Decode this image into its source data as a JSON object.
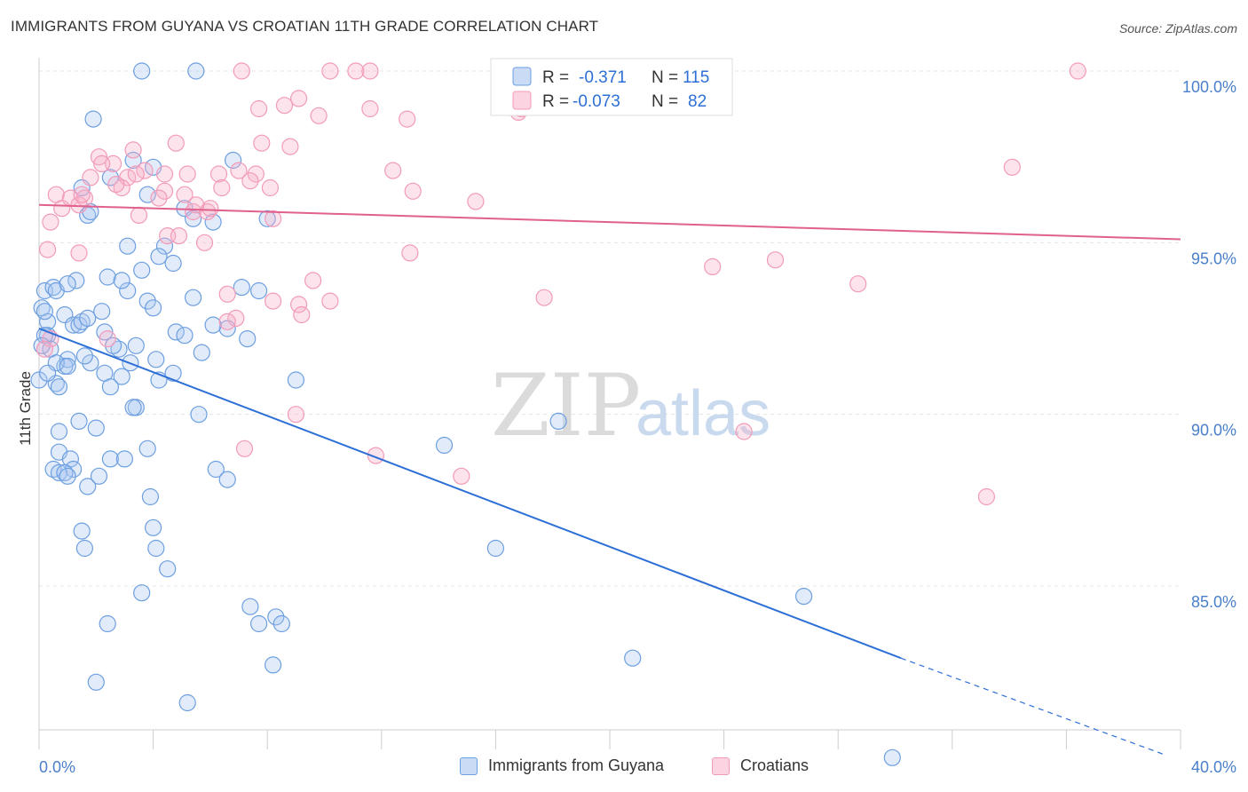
{
  "header": {
    "title": "IMMIGRANTS FROM GUYANA VS CROATIAN 11TH GRADE CORRELATION CHART",
    "source": "Source: ZipAtlas.com"
  },
  "watermark": {
    "zip": "ZIP",
    "atlas": "atlas"
  },
  "legend_top": {
    "rows": [
      {
        "r_label": "R =",
        "r_value": "-0.371",
        "n_label": "N =",
        "n_value": "115",
        "color": "#6d9fe0"
      },
      {
        "r_label": "R =",
        "r_value": "-0.073",
        "n_label": "N =",
        "n_value": "82",
        "color": "#f29bb8"
      }
    ]
  },
  "legend_bottom": {
    "items": [
      {
        "label": "Immigrants from Guyana",
        "color": "#6d9fe0"
      },
      {
        "label": "Croatians",
        "color": "#f29bb8"
      }
    ]
  },
  "chart_data": {
    "type": "scatter",
    "title": "IMMIGRANTS FROM GUYANA VS CROATIAN 11TH GRADE CORRELATION CHART",
    "xlabel": "",
    "ylabel": "11th Grade",
    "xlim": [
      0,
      40
    ],
    "ylim": [
      80,
      100.5
    ],
    "x_ticks": [
      0,
      4,
      8,
      12,
      16,
      20,
      24,
      28,
      32,
      36,
      40
    ],
    "x_tick_labels": {
      "0": "0.0%",
      "40": "40.0%"
    },
    "y_ticks": [
      100,
      95,
      90,
      85
    ],
    "y_tick_labels": [
      "100.0%",
      "95.0%",
      "90.0%",
      "85.0%"
    ],
    "grid": true,
    "legend_position": "top-center",
    "series": [
      {
        "name": "Immigrants from Guyana",
        "color": "#6d9fe0",
        "line_color": "#2d6fd6",
        "r": -0.371,
        "n": 115,
        "trend": {
          "x0": 0,
          "y0": 92.5,
          "x1": 30.2,
          "y1": 82.9,
          "dash_to_x": 39.4,
          "dash_to_y": 80.1
        },
        "points": [
          [
            3.6,
            100
          ],
          [
            5.5,
            100
          ],
          [
            1.9,
            98.6
          ],
          [
            3.3,
            97.4
          ],
          [
            6.8,
            97.4
          ],
          [
            2.5,
            96.9
          ],
          [
            1.5,
            96.6
          ],
          [
            4.0,
            97.2
          ],
          [
            3.8,
            96.4
          ],
          [
            1.7,
            95.8
          ],
          [
            1.8,
            95.9
          ],
          [
            5.1,
            96.0
          ],
          [
            5.4,
            95.7
          ],
          [
            6.1,
            95.6
          ],
          [
            8.0,
            95.7
          ],
          [
            3.1,
            94.9
          ],
          [
            4.4,
            94.9
          ],
          [
            2.4,
            94.0
          ],
          [
            1.3,
            93.9
          ],
          [
            3.6,
            94.2
          ],
          [
            4.2,
            94.6
          ],
          [
            4.7,
            94.4
          ],
          [
            0.2,
            93.6
          ],
          [
            0.5,
            93.7
          ],
          [
            0.6,
            93.6
          ],
          [
            3.1,
            93.6
          ],
          [
            3.8,
            93.3
          ],
          [
            5.4,
            93.4
          ],
          [
            7.7,
            93.6
          ],
          [
            4.0,
            93.1
          ],
          [
            0.1,
            93.1
          ],
          [
            0.3,
            92.7
          ],
          [
            0.3,
            92.3
          ],
          [
            0.9,
            92.9
          ],
          [
            1.2,
            92.6
          ],
          [
            1.4,
            92.6
          ],
          [
            1.5,
            92.7
          ],
          [
            1.7,
            92.8
          ],
          [
            2.2,
            93.0
          ],
          [
            2.3,
            92.4
          ],
          [
            0.2,
            92.3
          ],
          [
            4.8,
            92.4
          ],
          [
            5.1,
            92.3
          ],
          [
            6.6,
            92.5
          ],
          [
            7.3,
            92.2
          ],
          [
            1.0,
            91.6
          ],
          [
            0.4,
            91.9
          ],
          [
            1.8,
            91.5
          ],
          [
            2.8,
            91.9
          ],
          [
            3.4,
            92.0
          ],
          [
            0.9,
            91.4
          ],
          [
            0.6,
            91.5
          ],
          [
            1.0,
            91.4
          ],
          [
            2.3,
            91.2
          ],
          [
            3.2,
            91.5
          ],
          [
            4.7,
            91.2
          ],
          [
            2.9,
            91.1
          ],
          [
            4.2,
            91.0
          ],
          [
            0.6,
            90.9
          ],
          [
            0.7,
            90.8
          ],
          [
            2.5,
            90.8
          ],
          [
            9.0,
            91.0
          ],
          [
            3.4,
            90.2
          ],
          [
            3.3,
            90.2
          ],
          [
            5.6,
            90.0
          ],
          [
            1.4,
            89.8
          ],
          [
            0.7,
            89.5
          ],
          [
            2.0,
            89.6
          ],
          [
            3.8,
            89.0
          ],
          [
            0.7,
            88.9
          ],
          [
            1.1,
            88.7
          ],
          [
            2.5,
            88.7
          ],
          [
            3.0,
            88.7
          ],
          [
            0.5,
            88.4
          ],
          [
            1.2,
            88.4
          ],
          [
            0.7,
            88.3
          ],
          [
            0.9,
            88.3
          ],
          [
            1.0,
            88.2
          ],
          [
            2.1,
            88.2
          ],
          [
            6.2,
            88.4
          ],
          [
            6.6,
            88.1
          ],
          [
            1.7,
            87.9
          ],
          [
            3.9,
            87.6
          ],
          [
            14.2,
            89.1
          ],
          [
            18.2,
            89.8
          ],
          [
            4.0,
            86.7
          ],
          [
            1.5,
            86.6
          ],
          [
            1.6,
            86.1
          ],
          [
            4.1,
            86.1
          ],
          [
            16.0,
            86.1
          ],
          [
            4.5,
            85.5
          ],
          [
            3.6,
            84.8
          ],
          [
            7.4,
            84.4
          ],
          [
            8.3,
            84.1
          ],
          [
            2.4,
            83.9
          ],
          [
            7.7,
            83.9
          ],
          [
            8.5,
            83.9
          ],
          [
            26.8,
            84.7
          ],
          [
            8.2,
            82.7
          ],
          [
            20.8,
            82.9
          ],
          [
            2.0,
            82.2
          ],
          [
            5.2,
            81.6
          ],
          [
            29.9,
            80.0
          ],
          [
            0.0,
            91.0
          ],
          [
            0.1,
            92.0
          ],
          [
            0.2,
            93.0
          ],
          [
            0.3,
            91.2
          ],
          [
            1.6,
            91.7
          ],
          [
            2.6,
            92.0
          ],
          [
            4.1,
            91.6
          ],
          [
            5.7,
            91.8
          ],
          [
            6.1,
            92.6
          ],
          [
            7.1,
            93.7
          ],
          [
            1.0,
            93.8
          ],
          [
            2.9,
            93.9
          ]
        ]
      },
      {
        "name": "Croatians",
        "color": "#f29bb8",
        "line_color": "#e0608e",
        "r": -0.073,
        "n": 82,
        "trend": {
          "x0": 0,
          "y0": 96.1,
          "x1": 40,
          "y1": 95.1
        },
        "points": [
          [
            7.1,
            100
          ],
          [
            10.2,
            100
          ],
          [
            11.1,
            100
          ],
          [
            11.6,
            100
          ],
          [
            22.3,
            100
          ],
          [
            36.4,
            100
          ],
          [
            9.1,
            99.2
          ],
          [
            8.6,
            99.0
          ],
          [
            7.7,
            98.9
          ],
          [
            11.6,
            98.9
          ],
          [
            9.8,
            98.7
          ],
          [
            12.9,
            98.6
          ],
          [
            16.8,
            98.8
          ],
          [
            16.9,
            98.9
          ],
          [
            4.8,
            97.9
          ],
          [
            7.8,
            97.9
          ],
          [
            8.8,
            97.8
          ],
          [
            3.3,
            97.7
          ],
          [
            2.1,
            97.5
          ],
          [
            2.6,
            97.3
          ],
          [
            3.7,
            97.1
          ],
          [
            4.4,
            97.0
          ],
          [
            5.2,
            97.0
          ],
          [
            6.3,
            97.0
          ],
          [
            7.6,
            97.0
          ],
          [
            3.1,
            96.9
          ],
          [
            1.8,
            96.9
          ],
          [
            12.4,
            97.1
          ],
          [
            34.1,
            97.2
          ],
          [
            7.4,
            96.8
          ],
          [
            6.4,
            96.6
          ],
          [
            2.9,
            96.6
          ],
          [
            4.4,
            96.5
          ],
          [
            5.1,
            96.4
          ],
          [
            8.1,
            96.6
          ],
          [
            13.1,
            96.5
          ],
          [
            0.6,
            96.4
          ],
          [
            1.1,
            96.3
          ],
          [
            1.6,
            96.3
          ],
          [
            4.2,
            96.3
          ],
          [
            1.4,
            96.1
          ],
          [
            0.8,
            96.0
          ],
          [
            5.4,
            95.9
          ],
          [
            5.9,
            95.9
          ],
          [
            3.5,
            95.8
          ],
          [
            8.2,
            95.7
          ],
          [
            15.3,
            96.2
          ],
          [
            0.4,
            95.6
          ],
          [
            4.5,
            95.2
          ],
          [
            4.9,
            95.2
          ],
          [
            5.8,
            95.0
          ],
          [
            1.4,
            94.7
          ],
          [
            0.3,
            94.8
          ],
          [
            13.0,
            94.7
          ],
          [
            23.6,
            94.3
          ],
          [
            25.8,
            94.5
          ],
          [
            28.7,
            93.8
          ],
          [
            9.6,
            93.9
          ],
          [
            6.6,
            93.5
          ],
          [
            8.2,
            93.3
          ],
          [
            9.1,
            93.2
          ],
          [
            10.2,
            93.3
          ],
          [
            17.7,
            93.4
          ],
          [
            6.9,
            92.8
          ],
          [
            6.6,
            92.7
          ],
          [
            9.2,
            92.9
          ],
          [
            2.4,
            92.2
          ],
          [
            0.4,
            92.2
          ],
          [
            0.2,
            91.9
          ],
          [
            7.2,
            89.0
          ],
          [
            9.0,
            90.0
          ],
          [
            11.8,
            88.8
          ],
          [
            14.8,
            88.2
          ],
          [
            24.7,
            89.5
          ],
          [
            33.2,
            87.6
          ],
          [
            3.4,
            97.0
          ],
          [
            2.2,
            97.3
          ],
          [
            2.7,
            96.7
          ],
          [
            5.5,
            96.1
          ],
          [
            6.0,
            96.0
          ],
          [
            1.5,
            96.4
          ],
          [
            7.0,
            97.1
          ]
        ]
      }
    ]
  }
}
